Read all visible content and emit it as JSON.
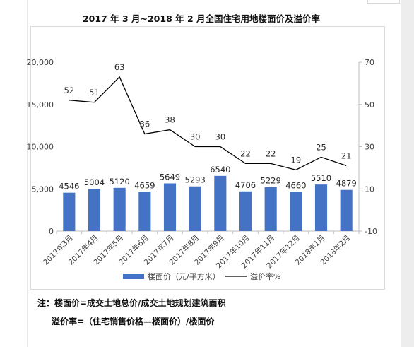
{
  "title": "2017 年 3 月~2018 年 2 月全国住宅用地楼面价及溢价率",
  "notes": {
    "line1": "注：楼面价=成交土地总价/成交土地规划建筑面积",
    "line2": "溢价率=（住宅销售价格—楼面价）/楼面价"
  },
  "chart_data": {
    "type": "bar+line",
    "categories": [
      "2017年3月",
      "2017年4月",
      "2017年5月",
      "2017年6月",
      "2017年7月",
      "2017年8月",
      "2017年9月",
      "2017年10月",
      "2017年11月",
      "2017年12月",
      "2018年1月",
      "2018年2月"
    ],
    "series": [
      {
        "name": "楼面价（元/平方米）",
        "type": "bar",
        "axis": "left",
        "values": [
          4546,
          5004,
          5120,
          4659,
          5649,
          5293,
          6540,
          4706,
          5229,
          4660,
          5510,
          4879
        ]
      },
      {
        "name": "溢价率%",
        "type": "line",
        "axis": "right",
        "values": [
          52,
          51,
          63,
          36,
          38,
          30,
          30,
          22,
          22,
          19,
          25,
          21
        ]
      }
    ],
    "left_axis": {
      "ylim": [
        0,
        20000
      ],
      "ticks": [
        "0",
        "5,000",
        "10,000",
        "15,000",
        "20,000"
      ],
      "tick_values": [
        0,
        5000,
        10000,
        15000,
        20000
      ]
    },
    "right_axis": {
      "ylim": [
        -10,
        70
      ],
      "ticks": [
        "-10",
        "10",
        "30",
        "50",
        "70"
      ],
      "tick_values": [
        -10,
        10,
        30,
        50,
        70
      ]
    },
    "colors": {
      "bar": "#4472c4",
      "line": "#000000",
      "axis": "#bfbfbf",
      "text": "#404040"
    },
    "grid": false,
    "legend_placement": "bottom"
  }
}
